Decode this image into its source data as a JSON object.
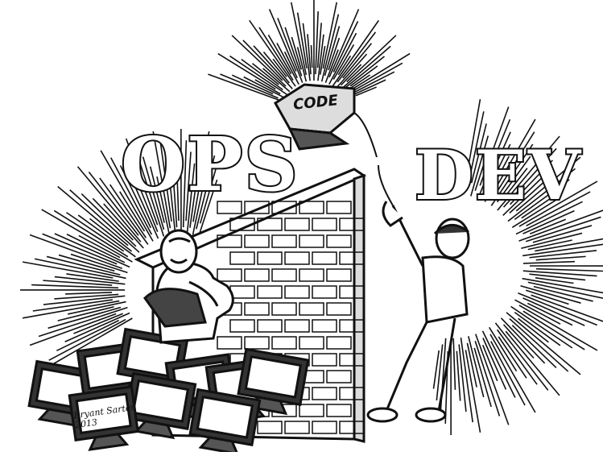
{
  "title_left": "OPS",
  "title_right": "DEV",
  "package_label": "CODE",
  "signature": {
    "name": "Bryant Sarten",
    "year": "2013"
  }
}
